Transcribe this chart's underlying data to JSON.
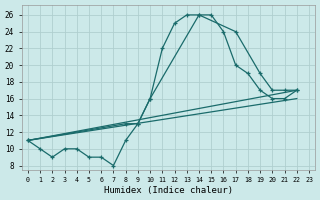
{
  "xlabel": "Humidex (Indice chaleur)",
  "bg_color": "#cce9e9",
  "line_color": "#1a6b6b",
  "grid_color": "#b8d8d8",
  "xlim": [
    -0.5,
    23.5
  ],
  "ylim": [
    7.5,
    27.2
  ],
  "xticks": [
    0,
    1,
    2,
    3,
    4,
    5,
    6,
    7,
    8,
    9,
    10,
    11,
    12,
    13,
    14,
    15,
    16,
    17,
    18,
    19,
    20,
    21,
    22,
    23
  ],
  "yticks": [
    8,
    10,
    12,
    14,
    16,
    18,
    20,
    22,
    24,
    26
  ],
  "curve1_x": [
    0,
    1,
    2,
    3,
    4,
    5,
    6,
    7,
    8,
    9,
    10,
    11,
    12,
    13,
    14,
    15,
    16,
    17,
    18,
    19,
    20,
    21,
    22
  ],
  "curve1_y": [
    11,
    10,
    9,
    10,
    10,
    9,
    9,
    8,
    11,
    13,
    16,
    22,
    25,
    26,
    26,
    26,
    24,
    20,
    19,
    17,
    16,
    16,
    17
  ],
  "curve2_x": [
    0,
    8,
    9,
    10,
    14,
    17,
    19,
    20,
    21,
    22
  ],
  "curve2_y": [
    11,
    13,
    13,
    16,
    26,
    24,
    19,
    17,
    17,
    17
  ],
  "line3_x": [
    0,
    22
  ],
  "line3_y": [
    11,
    17
  ],
  "line4_x": [
    0,
    22
  ],
  "line4_y": [
    11,
    16
  ]
}
